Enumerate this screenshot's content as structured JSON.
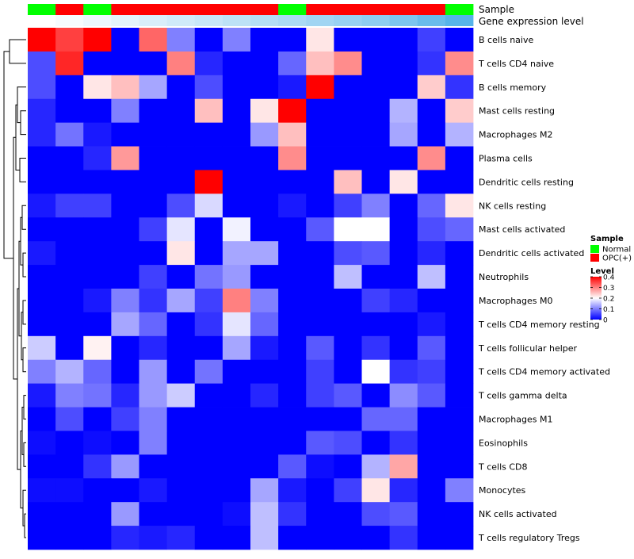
{
  "chart_data": {
    "type": "heatmap",
    "annotations": [
      {
        "name": "Sample",
        "values": [
          "Normal",
          "OPC(+)",
          "Normal",
          "OPC(+)",
          "OPC(+)",
          "OPC(+)",
          "OPC(+)",
          "OPC(+)",
          "OPC(+)",
          "Normal",
          "OPC(+)",
          "OPC(+)",
          "OPC(+)",
          "OPC(+)",
          "OPC(+)",
          "Normal"
        ]
      },
      {
        "name": "Gene expression level",
        "values": [
          0.0,
          0.05,
          0.1,
          0.15,
          0.2,
          0.25,
          0.3,
          0.35,
          0.4,
          0.45,
          0.5,
          0.55,
          0.6,
          0.7,
          0.8,
          0.9
        ]
      }
    ],
    "rows": [
      "B cells naive",
      "T cells CD4 naive",
      "B cells memory",
      "Mast cells resting",
      "Macrophages M2",
      "Plasma cells",
      "Dendritic cells resting",
      "NK cells resting",
      "Mast cells activated",
      "Dendritic cells activated",
      "Neutrophils",
      "Macrophages M0",
      "T cells CD4 memory resting",
      "T cells follicular helper",
      "T cells CD4 memory activated",
      "T cells gamma delta",
      "Macrophages M1",
      "Eosinophils",
      "T cells CD8",
      "Monocytes",
      "NK cells activated",
      "T cells regulatory  Tregs"
    ],
    "values": [
      [
        0.4,
        0.35,
        0.4,
        0.0,
        0.32,
        0.1,
        0.0,
        0.1,
        0.0,
        0.0,
        0.22,
        0.0,
        0.0,
        0.0,
        0.05,
        0.0
      ],
      [
        0.06,
        0.37,
        0.0,
        0.0,
        0.0,
        0.3,
        0.03,
        0.0,
        0.0,
        0.08,
        0.25,
        0.29,
        0.0,
        0.0,
        0.04,
        0.29
      ],
      [
        0.06,
        0.0,
        0.22,
        0.25,
        0.13,
        0.0,
        0.06,
        0.0,
        0.0,
        0.02,
        0.4,
        0.0,
        0.0,
        0.0,
        0.24,
        0.04
      ],
      [
        0.03,
        0.0,
        0.0,
        0.1,
        0.0,
        0.0,
        0.25,
        0.0,
        0.22,
        0.4,
        0.0,
        0.0,
        0.0,
        0.14,
        0.0,
        0.24
      ],
      [
        0.03,
        0.09,
        0.02,
        0.0,
        0.0,
        0.0,
        0.0,
        0.0,
        0.12,
        0.25,
        0.0,
        0.0,
        0.0,
        0.13,
        0.0,
        0.14
      ],
      [
        0.0,
        0.0,
        0.03,
        0.28,
        0.0,
        0.0,
        0.0,
        0.0,
        0.0,
        0.29,
        0.0,
        0.0,
        0.0,
        0.0,
        0.29,
        0.0
      ],
      [
        0.0,
        0.0,
        0.0,
        0.0,
        0.0,
        0.0,
        0.4,
        0.0,
        0.0,
        0.0,
        0.0,
        0.25,
        0.0,
        0.22,
        0.0,
        0.0
      ],
      [
        0.02,
        0.05,
        0.05,
        0.0,
        0.0,
        0.06,
        0.17,
        0.0,
        0.0,
        0.02,
        0.0,
        0.05,
        0.1,
        0.0,
        0.08,
        0.22
      ],
      [
        0.0,
        0.0,
        0.0,
        0.0,
        0.05,
        0.18,
        0.0,
        0.19,
        0.0,
        0.0,
        0.07,
        0.2,
        0.2,
        0.0,
        0.06,
        0.08
      ],
      [
        0.02,
        0.0,
        0.0,
        0.0,
        0.0,
        0.22,
        0.0,
        0.13,
        0.13,
        0.0,
        0.0,
        0.06,
        0.07,
        0.0,
        0.03,
        0.0
      ],
      [
        0.0,
        0.0,
        0.0,
        0.0,
        0.05,
        0.0,
        0.09,
        0.12,
        0.0,
        0.0,
        0.0,
        0.15,
        0.0,
        0.0,
        0.15,
        0.0
      ],
      [
        0.0,
        0.0,
        0.02,
        0.1,
        0.04,
        0.13,
        0.05,
        0.3,
        0.1,
        0.0,
        0.0,
        0.0,
        0.05,
        0.03,
        0.0,
        0.0
      ],
      [
        0.0,
        0.0,
        0.0,
        0.13,
        0.08,
        0.0,
        0.04,
        0.18,
        0.08,
        0.0,
        0.0,
        0.0,
        0.0,
        0.0,
        0.02,
        0.0
      ],
      [
        0.16,
        0.0,
        0.21,
        0.0,
        0.03,
        0.0,
        0.0,
        0.13,
        0.02,
        0.0,
        0.07,
        0.0,
        0.04,
        0.0,
        0.07,
        0.0
      ],
      [
        0.1,
        0.14,
        0.08,
        0.0,
        0.12,
        0.0,
        0.09,
        0.0,
        0.0,
        0.0,
        0.05,
        0.0,
        0.2,
        0.04,
        0.05,
        0.0
      ],
      [
        0.02,
        0.1,
        0.09,
        0.03,
        0.12,
        0.16,
        0.0,
        0.0,
        0.03,
        0.0,
        0.05,
        0.07,
        0.0,
        0.11,
        0.07,
        0.0
      ],
      [
        0.0,
        0.06,
        0.0,
        0.05,
        0.1,
        0.0,
        0.0,
        0.0,
        0.0,
        0.0,
        0.0,
        0.0,
        0.08,
        0.08,
        0.0,
        0.0
      ],
      [
        0.01,
        0.0,
        0.01,
        0.0,
        0.1,
        0.0,
        0.0,
        0.0,
        0.0,
        0.0,
        0.07,
        0.06,
        0.0,
        0.04,
        0.0,
        0.0
      ],
      [
        0.0,
        0.0,
        0.04,
        0.12,
        0.0,
        0.0,
        0.0,
        0.0,
        0.0,
        0.07,
        0.01,
        0.0,
        0.14,
        0.27,
        0.0,
        0.0
      ],
      [
        0.01,
        0.01,
        0.0,
        0.0,
        0.02,
        0.0,
        0.0,
        0.0,
        0.13,
        0.02,
        0.0,
        0.05,
        0.22,
        0.03,
        0.0,
        0.1
      ],
      [
        0.0,
        0.0,
        0.0,
        0.12,
        0.0,
        0.0,
        0.0,
        0.01,
        0.15,
        0.04,
        0.0,
        0.0,
        0.06,
        0.07,
        0.0,
        0.0
      ],
      [
        0.0,
        0.0,
        0.0,
        0.03,
        0.02,
        0.03,
        0.0,
        0.0,
        0.15,
        0.0,
        0.0,
        0.0,
        0.0,
        0.04,
        0.0,
        0.0
      ]
    ],
    "color_scale": {
      "min": 0,
      "mid": 0.2,
      "max": 0.4,
      "low": "#0000FF",
      "midColor": "#FFFFFF",
      "high": "#FF0000"
    },
    "annotation_colors": {
      "Sample": {
        "Normal": "#00FF00",
        "OPC(+)": "#FF0000"
      },
      "Gene expression level": {
        "low": "#FFFFFF",
        "high": "#56B4E9"
      }
    },
    "legend": {
      "sample_title": "Sample",
      "sample_items": [
        "Normal",
        "OPC(+)"
      ],
      "level_title": "Level",
      "level_ticks": [
        0.4,
        0.3,
        0.2,
        0.1,
        0
      ],
      "level_tick_labels": [
        "0.4",
        "0.3",
        "0.2",
        "0.1",
        "0"
      ],
      "placement": "right"
    },
    "row_dendrogram": true,
    "column_dendrogram": false
  }
}
